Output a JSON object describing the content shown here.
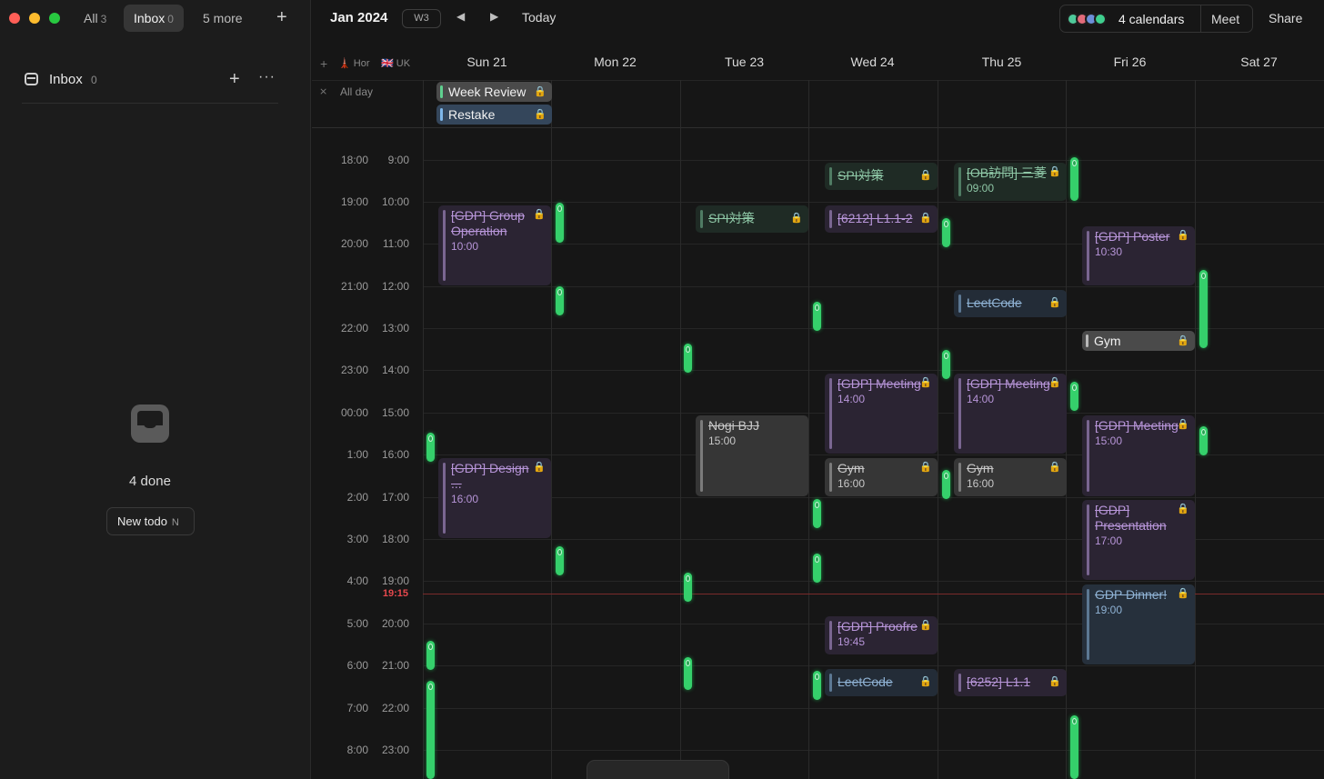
{
  "window_tabs": [
    {
      "label": "All",
      "count": "3"
    },
    {
      "label": "Inbox",
      "count": "0"
    },
    {
      "label": "5 more",
      "count": ""
    }
  ],
  "add_tab": "+",
  "sidebar": {
    "inbox_title": "Inbox",
    "inbox_count": "0",
    "add_icon": "+",
    "menu_icon": "···",
    "done_text": "4 done",
    "new_todo_label": "New todo",
    "new_todo_key": "N"
  },
  "header": {
    "month": "Jan 2024",
    "week": "W3",
    "prev": "◀",
    "next": "▶",
    "today": "Today",
    "calendars_label": "4 calendars",
    "calendar_colors": [
      "#4fc99a",
      "#e26b7a",
      "#6c8fd9",
      "#3fcf8e"
    ],
    "meet": "Meet",
    "share": "Share"
  },
  "timezones": [
    "🗼 Hor",
    "🇬🇧 UK"
  ],
  "tz_add": "+",
  "days": [
    "Sun  21",
    "Mon  22",
    "Tue  23",
    "Wed  24",
    "Thu  25",
    "Fri  26",
    "Sat  27"
  ],
  "allday_label": "All day",
  "allday_events": [
    {
      "title": "Week Review",
      "color": "gray"
    },
    {
      "title": "Restake",
      "color": "blue"
    }
  ],
  "time_labels_tz1": [
    "18:00",
    "19:00",
    "20:00",
    "21:00",
    "22:00",
    "23:00",
    "00:00",
    "1:00",
    "2:00",
    "3:00",
    "4:00",
    "5:00",
    "6:00",
    "7:00",
    "8:00"
  ],
  "time_labels_tz2": [
    "9:00",
    "10:00",
    "11:00",
    "12:00",
    "13:00",
    "14:00",
    "15:00",
    "16:00",
    "17:00",
    "18:00",
    "19:00",
    "20:00",
    "21:00",
    "22:00",
    "23:00"
  ],
  "now_label": "19:15",
  "events": [
    {
      "title": "[GDP] Group Operation",
      "time": "10:00",
      "color": "purple"
    },
    {
      "title": "SPI対策",
      "time": "",
      "color": "green"
    },
    {
      "title": "Nogi BJJ",
      "time": "15:00",
      "color": "gray"
    },
    {
      "title": "SPI対策",
      "time": "",
      "color": "green"
    },
    {
      "title": "[6212] L1.1-2",
      "time": "",
      "color": "purple"
    },
    {
      "title": "[GDP] Meeting",
      "time": "14:00",
      "color": "purple"
    },
    {
      "title": "Gym",
      "time": "16:00",
      "color": "gray"
    },
    {
      "title": "[GDP] Proofre",
      "time": "19:45",
      "color": "purple"
    },
    {
      "title": "LeetCode",
      "time": "",
      "color": "blue"
    },
    {
      "title": "[OB訪問] 三菱",
      "time": "09:00",
      "color": "green"
    },
    {
      "title": "LeetCode",
      "time": "",
      "color": "blue"
    },
    {
      "title": "[GDP] Meeting",
      "time": "14:00",
      "color": "purple"
    },
    {
      "title": "Gym",
      "time": "16:00",
      "color": "gray"
    },
    {
      "title": "[6252] L1.1",
      "time": "",
      "color": "purple"
    },
    {
      "title": "[GDP] Poster",
      "time": "10:30",
      "color": "purple"
    },
    {
      "title": "Gym",
      "time": "",
      "color": "gray"
    },
    {
      "title": "[GDP] Meeting",
      "time": "15:00",
      "color": "purple"
    },
    {
      "title": "[GDP] Presentation",
      "time": "17:00",
      "color": "purple"
    },
    {
      "title": "GDP Dinner!",
      "time": "19:00",
      "color": "blue"
    },
    {
      "title": "[GDP] Design ...",
      "time": "16:00",
      "color": "purple"
    }
  ],
  "lock_icon": "🔒"
}
